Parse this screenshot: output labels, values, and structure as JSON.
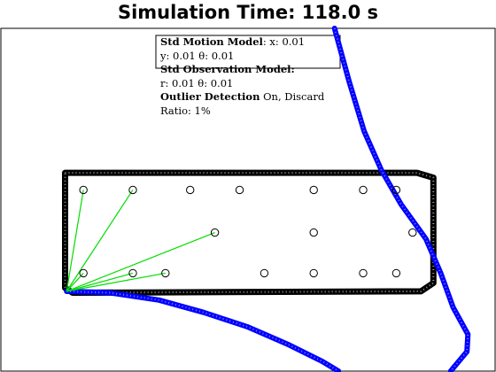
{
  "title": "Simulation Time: 118.0 s",
  "annotation": {
    "motion_label": "Std Motion Model",
    "motion_text": ": x: 0.01",
    "motion_line2": "y: 0.01 θ: 0.01",
    "observation_label": "Std Observation Model:",
    "observation_text": "r: 0.01 θ: 0.01",
    "outlier_label": "Outlier Detection",
    "outlier_text": " On, Discard",
    "outlier_line2": "Ratio: 1%"
  },
  "chart_data": {
    "type": "scatter",
    "title": "Simulation Time: 118.0 s",
    "xlim": [
      0,
      100
    ],
    "ylim": [
      0,
      70
    ],
    "grid": false,
    "colors": {
      "track": "#000000",
      "estimate": "#0000ff",
      "observation": "#00dd00",
      "landmark": "#000000"
    },
    "series": [
      {
        "role": "track",
        "points": [
          [
            13,
            40.5
          ],
          [
            84.2,
            40.5
          ],
          [
            87.5,
            39.5
          ],
          [
            87.5,
            18
          ],
          [
            85,
            16.3
          ],
          [
            14.5,
            16
          ],
          [
            13,
            17
          ],
          [
            13,
            40.5
          ]
        ]
      },
      {
        "role": "estimate",
        "points": [
          [
            67.5,
            70
          ],
          [
            70.5,
            59
          ],
          [
            73.5,
            49
          ],
          [
            77,
            41
          ],
          [
            81,
            34
          ],
          [
            86,
            27
          ],
          [
            89,
            20
          ],
          [
            91.5,
            13
          ],
          [
            94.5,
            7.5
          ],
          [
            94.3,
            4
          ],
          [
            91,
            0
          ]
        ]
      },
      {
        "role": "estimate",
        "points": [
          [
            13.3,
            16.3
          ],
          [
            22,
            16
          ],
          [
            32,
            14.5
          ],
          [
            41,
            12
          ],
          [
            50,
            9
          ],
          [
            58,
            5.5
          ],
          [
            65,
            2
          ],
          [
            68.3,
            0
          ]
        ]
      },
      {
        "role": "landmarks",
        "points": [
          [
            16.7,
            37
          ],
          [
            26.7,
            37
          ],
          [
            38.3,
            37
          ],
          [
            48.3,
            37
          ],
          [
            63.3,
            37
          ],
          [
            73.3,
            37
          ],
          [
            80,
            37
          ],
          [
            43.3,
            28.3
          ],
          [
            63.3,
            28.3
          ],
          [
            83.3,
            28.3
          ],
          [
            16.7,
            20
          ],
          [
            26.7,
            20
          ],
          [
            33.3,
            20
          ],
          [
            53.3,
            20
          ],
          [
            63.3,
            20
          ],
          [
            73.3,
            20
          ],
          [
            80,
            20
          ]
        ]
      },
      {
        "role": "observations",
        "origin": [
          13.3,
          16.3
        ],
        "points": [
          [
            16.7,
            37
          ],
          [
            26.7,
            37
          ],
          [
            43.3,
            28.3
          ],
          [
            16.7,
            20
          ],
          [
            26.7,
            20
          ],
          [
            33.3,
            20
          ]
        ]
      }
    ]
  }
}
